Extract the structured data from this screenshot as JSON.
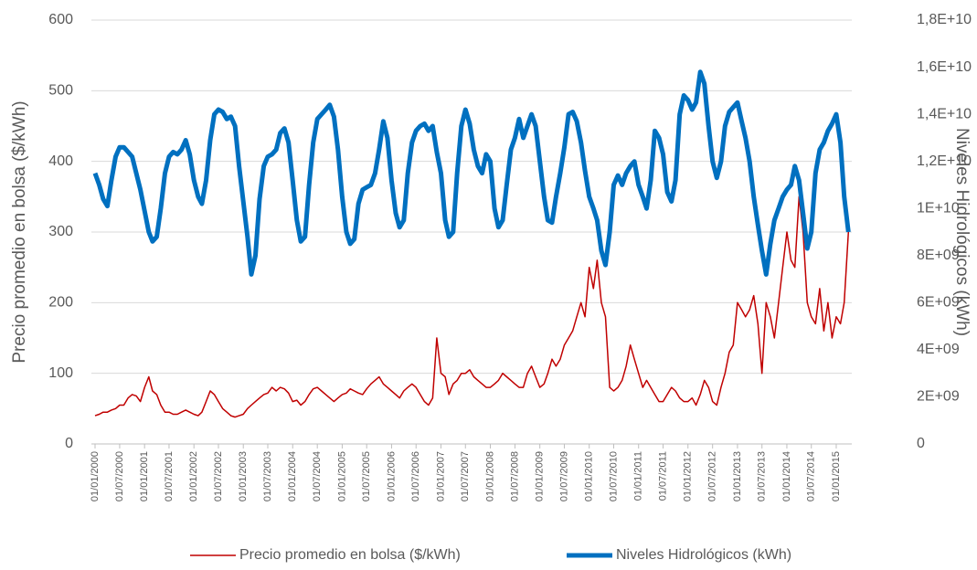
{
  "chart_data": {
    "type": "line",
    "x": [
      "01/01/2000",
      "01/02/2000",
      "01/03/2000",
      "01/04/2000",
      "01/05/2000",
      "01/06/2000",
      "01/07/2000",
      "01/08/2000",
      "01/09/2000",
      "01/10/2000",
      "01/11/2000",
      "01/12/2000",
      "01/01/2001",
      "01/02/2001",
      "01/03/2001",
      "01/04/2001",
      "01/05/2001",
      "01/06/2001",
      "01/07/2001",
      "01/08/2001",
      "01/09/2001",
      "01/10/2001",
      "01/11/2001",
      "01/12/2001",
      "01/01/2002",
      "01/02/2002",
      "01/03/2002",
      "01/04/2002",
      "01/05/2002",
      "01/06/2002",
      "01/07/2002",
      "01/08/2002",
      "01/09/2002",
      "01/10/2002",
      "01/11/2002",
      "01/12/2002",
      "01/01/2003",
      "01/02/2003",
      "01/03/2003",
      "01/04/2003",
      "01/05/2003",
      "01/06/2003",
      "01/07/2003",
      "01/08/2003",
      "01/09/2003",
      "01/10/2003",
      "01/11/2003",
      "01/12/2003",
      "01/01/2004",
      "01/02/2004",
      "01/03/2004",
      "01/04/2004",
      "01/05/2004",
      "01/06/2004",
      "01/07/2004",
      "01/08/2004",
      "01/09/2004",
      "01/10/2004",
      "01/11/2004",
      "01/12/2004",
      "01/01/2005",
      "01/02/2005",
      "01/03/2005",
      "01/04/2005",
      "01/05/2005",
      "01/06/2005",
      "01/07/2005",
      "01/08/2005",
      "01/09/2005",
      "01/10/2005",
      "01/11/2005",
      "01/12/2005",
      "01/01/2006",
      "01/02/2006",
      "01/03/2006",
      "01/04/2006",
      "01/05/2006",
      "01/06/2006",
      "01/07/2006",
      "01/08/2006",
      "01/09/2006",
      "01/10/2006",
      "01/11/2006",
      "01/12/2006",
      "01/01/2007",
      "01/02/2007",
      "01/03/2007",
      "01/04/2007",
      "01/05/2007",
      "01/06/2007",
      "01/07/2007",
      "01/08/2007",
      "01/09/2007",
      "01/10/2007",
      "01/11/2007",
      "01/12/2007",
      "01/01/2008",
      "01/02/2008",
      "01/03/2008",
      "01/04/2008",
      "01/05/2008",
      "01/06/2008",
      "01/07/2008",
      "01/08/2008",
      "01/09/2008",
      "01/10/2008",
      "01/11/2008",
      "01/12/2008",
      "01/01/2009",
      "01/02/2009",
      "01/03/2009",
      "01/04/2009",
      "01/05/2009",
      "01/06/2009",
      "01/07/2009",
      "01/08/2009",
      "01/09/2009",
      "01/10/2009",
      "01/11/2009",
      "01/12/2009",
      "01/01/2010",
      "01/02/2010",
      "01/03/2010",
      "01/04/2010",
      "01/05/2010",
      "01/06/2010",
      "01/07/2010",
      "01/08/2010",
      "01/09/2010",
      "01/10/2010",
      "01/11/2010",
      "01/12/2010",
      "01/01/2011",
      "01/02/2011",
      "01/03/2011",
      "01/04/2011",
      "01/05/2011",
      "01/06/2011",
      "01/07/2011",
      "01/08/2011",
      "01/09/2011",
      "01/10/2011",
      "01/11/2011",
      "01/12/2011",
      "01/01/2012",
      "01/02/2012",
      "01/03/2012",
      "01/04/2012",
      "01/05/2012",
      "01/06/2012",
      "01/07/2012",
      "01/08/2012",
      "01/09/2012",
      "01/10/2012",
      "01/11/2012",
      "01/12/2012",
      "01/01/2013",
      "01/02/2013",
      "01/03/2013",
      "01/04/2013",
      "01/05/2013",
      "01/06/2013",
      "01/07/2013",
      "01/08/2013",
      "01/09/2013",
      "01/10/2013",
      "01/11/2013",
      "01/12/2013",
      "01/01/2014",
      "01/02/2014",
      "01/03/2014",
      "01/04/2014",
      "01/05/2014",
      "01/06/2014",
      "01/07/2014",
      "01/08/2014",
      "01/09/2014",
      "01/10/2014",
      "01/11/2014",
      "01/12/2014",
      "01/01/2015",
      "01/02/2015",
      "01/03/2015",
      "01/04/2015"
    ],
    "series": [
      {
        "name": "Precio promedio en bolsa ($/kWh)",
        "color": "#c00000",
        "width": 1.5,
        "values": [
          40,
          42,
          45,
          45,
          48,
          50,
          55,
          55,
          65,
          70,
          68,
          60,
          80,
          95,
          75,
          70,
          55,
          45,
          45,
          42,
          42,
          45,
          48,
          45,
          42,
          40,
          45,
          60,
          75,
          70,
          60,
          50,
          45,
          40,
          38,
          40,
          42,
          50,
          55,
          60,
          65,
          70,
          72,
          80,
          75,
          80,
          78,
          72,
          60,
          62,
          55,
          60,
          70,
          78,
          80,
          75,
          70,
          65,
          60,
          65,
          70,
          72,
          78,
          75,
          72,
          70,
          78,
          85,
          90,
          95,
          85,
          80,
          75,
          70,
          65,
          75,
          80,
          85,
          80,
          70,
          60,
          55,
          65,
          150,
          100,
          95,
          70,
          85,
          90,
          100,
          100,
          105,
          95,
          90,
          85,
          80,
          80,
          85,
          90,
          100,
          95,
          90,
          85,
          80,
          80,
          100,
          110,
          95,
          80,
          85,
          100,
          120,
          110,
          120,
          140,
          150,
          160,
          180,
          200,
          180,
          250,
          220,
          260,
          200,
          180,
          80,
          75,
          80,
          90,
          110,
          140,
          120,
          100,
          80,
          90,
          80,
          70,
          60,
          60,
          70,
          80,
          75,
          65,
          60,
          60,
          65,
          55,
          70,
          90,
          80,
          60,
          55,
          80,
          100,
          130,
          140,
          200,
          190,
          180,
          190,
          210,
          170,
          100,
          200,
          180,
          150,
          200,
          250,
          300,
          260,
          250,
          350,
          300,
          200,
          180,
          170,
          220,
          160,
          200,
          150,
          180,
          170,
          200,
          300
        ]
      },
      {
        "name": "Niveles Hidrológicos (kWh)",
        "color": "#0070c0",
        "width": 5,
        "axis": "y2",
        "values": [
          11500000000.0,
          11000000000.0,
          10400000000.0,
          10100000000.0,
          11200000000.0,
          12200000000.0,
          12600000000.0,
          12600000000.0,
          12400000000.0,
          12200000000.0,
          11500000000.0,
          10800000000.0,
          9900000000.0,
          9000000000.0,
          8600000000.0,
          8800000000.0,
          10000000000.0,
          11500000000.0,
          12200000000.0,
          12400000000.0,
          12300000000.0,
          12500000000.0,
          12900000000.0,
          12300000000.0,
          11200000000.0,
          10500000000.0,
          10200000000.0,
          11200000000.0,
          12900000000.0,
          14000000000.0,
          14200000000.0,
          14100000000.0,
          13800000000.0,
          13900000000.0,
          13500000000.0,
          11800000000.0,
          10300000000.0,
          8800000000.0,
          7200000000.0,
          8000000000.0,
          10400000000.0,
          11800000000.0,
          12200000000.0,
          12300000000.0,
          12500000000.0,
          13200000000.0,
          13400000000.0,
          12800000000.0,
          11200000000.0,
          9500000000.0,
          8600000000.0,
          8800000000.0,
          11000000000.0,
          12800000000.0,
          13800000000.0,
          14000000000.0,
          14200000000.0,
          14400000000.0,
          13900000000.0,
          12500000000.0,
          10500000000.0,
          9000000000.0,
          8500000000.0,
          8700000000.0,
          10200000000.0,
          10800000000.0,
          10900000000.0,
          11000000000.0,
          11500000000.0,
          12500000000.0,
          13700000000.0,
          13000000000.0,
          11200000000.0,
          9800000000.0,
          9200000000.0,
          9500000000.0,
          11500000000.0,
          12800000000.0,
          13300000000.0,
          13500000000.0,
          13600000000.0,
          13300000000.0,
          13500000000.0,
          12400000000.0,
          11500000000.0,
          9500000000.0,
          8800000000.0,
          9000000000.0,
          11500000000.0,
          13500000000.0,
          14200000000.0,
          13600000000.0,
          12500000000.0,
          11800000000.0,
          11500000000.0,
          12300000000.0,
          12000000000.0,
          10000000000.0,
          9200000000.0,
          9500000000.0,
          11000000000.0,
          12500000000.0,
          13000000000.0,
          13800000000.0,
          13000000000.0,
          13500000000.0,
          14000000000.0,
          13500000000.0,
          12000000000.0,
          10500000000.0,
          9500000000.0,
          9400000000.0,
          10500000000.0,
          11500000000.0,
          12600000000.0,
          14000000000.0,
          14100000000.0,
          13700000000.0,
          12800000000.0,
          11600000000.0,
          10500000000.0,
          10000000000.0,
          9500000000.0,
          8200000000.0,
          7600000000.0,
          9000000000.0,
          11000000000.0,
          11400000000.0,
          11000000000.0,
          11500000000.0,
          11800000000.0,
          12000000000.0,
          11000000000.0,
          10500000000.0,
          10000000000.0,
          11200000000.0,
          13300000000.0,
          13000000000.0,
          12300000000.0,
          10700000000.0,
          10300000000.0,
          11200000000.0,
          14000000000.0,
          14800000000.0,
          14600000000.0,
          14200000000.0,
          14500000000.0,
          15800000000.0,
          15300000000.0,
          13500000000.0,
          12000000000.0,
          11300000000.0,
          12000000000.0,
          13500000000.0,
          14100000000.0,
          14300000000.0,
          14500000000.0,
          13700000000.0,
          13000000000.0,
          12000000000.0,
          10500000000.0,
          9300000000.0,
          8200000000.0,
          7200000000.0,
          8500000000.0,
          9500000000.0,
          10000000000.0,
          10500000000.0,
          10800000000.0,
          11000000000.0,
          11800000000.0,
          11200000000.0,
          9800000000.0,
          8300000000.0,
          9000000000.0,
          11500000000.0,
          12500000000.0,
          12800000000.0,
          13300000000.0,
          13600000000.0,
          14000000000.0,
          12800000000.0,
          10500000000.0,
          9000000000.0
        ]
      }
    ],
    "xlim": [
      "05/12/1999",
      "26/04/2015"
    ],
    "xticks": [
      "01/01/2000",
      "01/07/2000",
      "01/01/2001",
      "01/07/2001",
      "01/01/2002",
      "01/07/2002",
      "01/01/2003",
      "01/07/2003",
      "01/01/2004",
      "01/07/2004",
      "01/01/2005",
      "01/07/2005",
      "01/01/2006",
      "01/07/2006",
      "01/01/2007",
      "01/07/2007",
      "01/01/2008",
      "01/07/2008",
      "01/01/2009",
      "01/07/2009",
      "01/01/2010",
      "01/07/2010",
      "01/01/2011",
      "01/07/2011",
      "01/01/2012",
      "01/07/2012",
      "01/01/2013",
      "01/07/2013",
      "01/01/2014",
      "01/07/2014",
      "01/01/2015"
    ],
    "ylim": [
      0,
      600
    ],
    "yticks": [
      0,
      100,
      200,
      300,
      400,
      500,
      600
    ],
    "y2lim": [
      0,
      18000000000.0
    ],
    "y2ticks": [
      0,
      {
        "value": 2000000000.0,
        "label": "2E+09"
      },
      {
        "value": 4000000000.0,
        "label": "4E+09"
      },
      {
        "value": 6000000000.0,
        "label": "6E+09"
      },
      {
        "value": 8000000000.0,
        "label": "8E+09"
      },
      {
        "value": 10000000000.0,
        "label": "1E+10"
      },
      {
        "value": 12000000000.0,
        "label": "1,2E+10"
      },
      {
        "value": 14000000000.0,
        "label": "1,4E+10"
      },
      {
        "value": 16000000000.0,
        "label": "1,6E+10"
      },
      {
        "value": 18000000000.0,
        "label": "1,8E+10"
      }
    ],
    "ylabel": "Precio promedio en bolsa ($/kWh)",
    "y2label": "Niveles Hidrológicos (kWh)",
    "grid": true,
    "legend": "bottom"
  }
}
